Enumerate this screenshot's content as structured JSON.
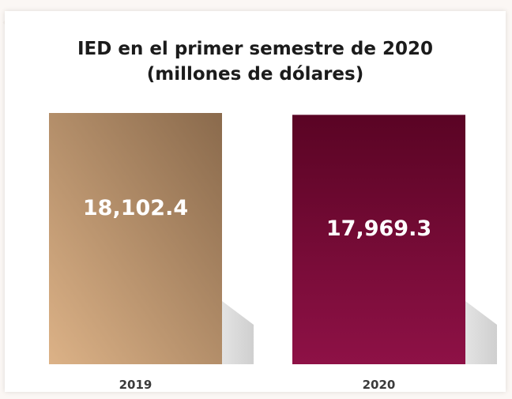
{
  "chart_data": {
    "type": "bar",
    "title": "IED en el primer semestre de 2020",
    "subtitle": "(millones de dólares)",
    "categories": [
      "2019",
      "2020"
    ],
    "values": [
      18102.4,
      17969.3
    ],
    "value_labels": [
      "18,102.4",
      "17,969.3"
    ],
    "xlabel": "",
    "ylabel": "",
    "grid": false,
    "colors": [
      "#c9a27a",
      "#7a0c3a"
    ]
  }
}
